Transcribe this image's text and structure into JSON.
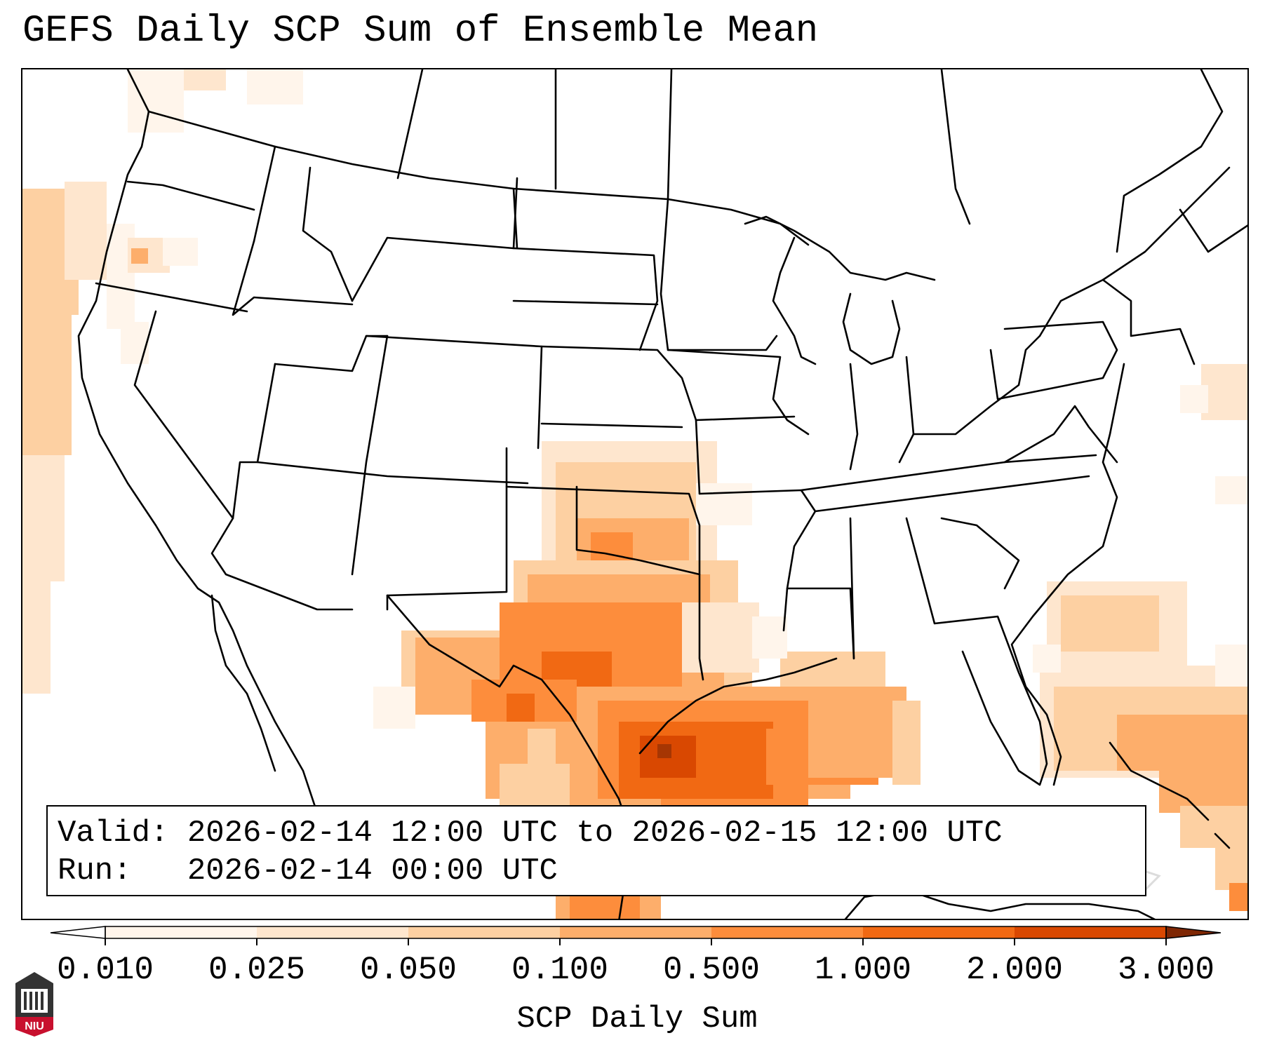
{
  "title": "GEFS Daily SCP Sum of Ensemble Mean",
  "info": {
    "valid_line": "Valid: 2026-02-14 12:00 UTC to 2026-02-15 12:00 UTC",
    "run_line": "Run:   2026-02-14 00:00 UTC"
  },
  "colorbar": {
    "label": "SCP Daily Sum",
    "ticks": [
      "0.010",
      "0.025",
      "0.050",
      "0.100",
      "0.500",
      "1.000",
      "2.000",
      "3.000"
    ],
    "colors": [
      "#fff5eb",
      "#fee6ce",
      "#fdd0a2",
      "#fdae6b",
      "#fd8d3c",
      "#f16913",
      "#d94801",
      "#a63603"
    ],
    "extend": "both"
  },
  "logo": {
    "text": "NIU"
  },
  "field_colors": {
    "lightest": "#fff5eb",
    "light": "#fee6ce",
    "mid_light": "#fdd0a2",
    "mid": "#fdae6b",
    "orange": "#fd8d3c",
    "deep_orange": "#f16913",
    "dark_orange": "#d94801",
    "darkest": "#a63603"
  }
}
